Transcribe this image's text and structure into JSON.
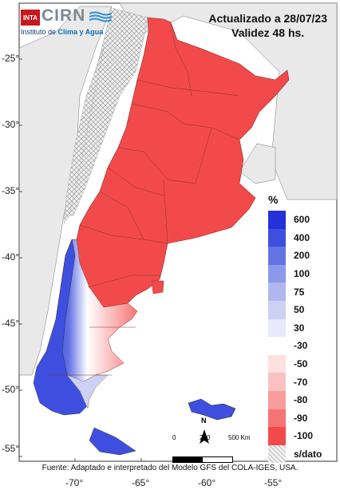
{
  "header": {
    "updated": "Actualizado a 28/07/23",
    "validity": "Validez 48 hs."
  },
  "logo": {
    "inta": "INTA",
    "cirn": "CIRN",
    "subtitle_prefix": "Instituto de ",
    "subtitle_emphasis": "Clima y Agua"
  },
  "axes": {
    "latitudes": [
      "-25°",
      "-30°",
      "-35°",
      "-40°",
      "-45°",
      "-50°",
      "-55°"
    ],
    "longitudes": [
      "-70°",
      "-65°",
      "-60°",
      "-55°"
    ]
  },
  "legend": {
    "title": "%",
    "items": [
      {
        "label": "600",
        "color": "#2431d9"
      },
      {
        "label": "400",
        "color": "#3e4fe0"
      },
      {
        "label": "200",
        "color": "#6474e5"
      },
      {
        "label": "100",
        "color": "#8c98ea"
      },
      {
        "label": "75",
        "color": "#b0b7ef"
      },
      {
        "label": "50",
        "color": "#cdd1f4"
      },
      {
        "label": "30",
        "color": "#e8e9fa"
      },
      {
        "label": "-30",
        "color": "#ffffff"
      },
      {
        "label": "-50",
        "color": "#fde0e0"
      },
      {
        "label": "-70",
        "color": "#fbc1c1"
      },
      {
        "label": "-80",
        "color": "#f89c9c"
      },
      {
        "label": "-90",
        "color": "#f57474"
      },
      {
        "label": "-100",
        "color": "#f24a4a"
      },
      {
        "label": "s/dato",
        "color": "pattern"
      }
    ]
  },
  "scale": {
    "labels": [
      "0",
      "250",
      "500 Km"
    ],
    "north": "N"
  },
  "footer": {
    "source": "Fuente: Adaptado e interpretado del Modelo GFS del COLA-IGES, USA."
  },
  "colors": {
    "deficit": "#f24a4a",
    "land_outside": "#e9e9e9",
    "water": "#ffffff"
  }
}
